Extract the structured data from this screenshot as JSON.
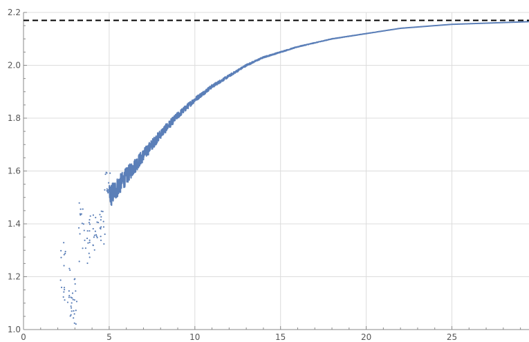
{
  "chart_data": {
    "type": "scatter",
    "title": "",
    "xlabel": "",
    "ylabel": "",
    "xlim": [
      0,
      29.5
    ],
    "ylim": [
      1.0,
      2.2
    ],
    "x_ticks": [
      0,
      5,
      10,
      15,
      20,
      25
    ],
    "y_ticks": [
      1.0,
      1.2,
      1.4,
      1.6,
      1.8,
      2.0,
      2.2
    ],
    "x_tick_labels": [
      "0",
      "5",
      "10",
      "15",
      "20",
      "25"
    ],
    "y_tick_labels": [
      "1.0",
      "1.2",
      "1.4",
      "1.6",
      "1.8",
      "2.0",
      "2.2"
    ],
    "grid": true,
    "series_color": "#5b7fb8",
    "reference_line": {
      "y": 2.17,
      "style": "dashed",
      "color": "#000000"
    },
    "approach_curve": {
      "limit": 2.17,
      "x": [
        5,
        6,
        7,
        8,
        9,
        10,
        11,
        12,
        13,
        14,
        15,
        16,
        18,
        20,
        22,
        25,
        29.5
      ],
      "y": [
        1.5,
        1.58,
        1.66,
        1.74,
        1.81,
        1.87,
        1.92,
        1.96,
        2.0,
        2.03,
        2.05,
        2.07,
        2.1,
        2.12,
        2.14,
        2.155,
        2.165
      ]
    },
    "scatter_clusters": [
      {
        "x": 2.3,
        "y_range": [
          1.06,
          1.33
        ]
      },
      {
        "x": 2.7,
        "y_range": [
          1.03,
          1.26
        ]
      },
      {
        "x": 3.0,
        "y_range": [
          1.02,
          1.2
        ]
      },
      {
        "x": 3.4,
        "y_range": [
          1.18,
          1.5
        ]
      },
      {
        "x": 3.8,
        "y_range": [
          1.25,
          1.43
        ]
      },
      {
        "x": 4.2,
        "y_range": [
          1.3,
          1.45
        ]
      },
      {
        "x": 4.6,
        "y_range": [
          1.32,
          1.45
        ]
      },
      {
        "x": 4.9,
        "y_range": [
          1.48,
          1.6
        ]
      }
    ]
  }
}
